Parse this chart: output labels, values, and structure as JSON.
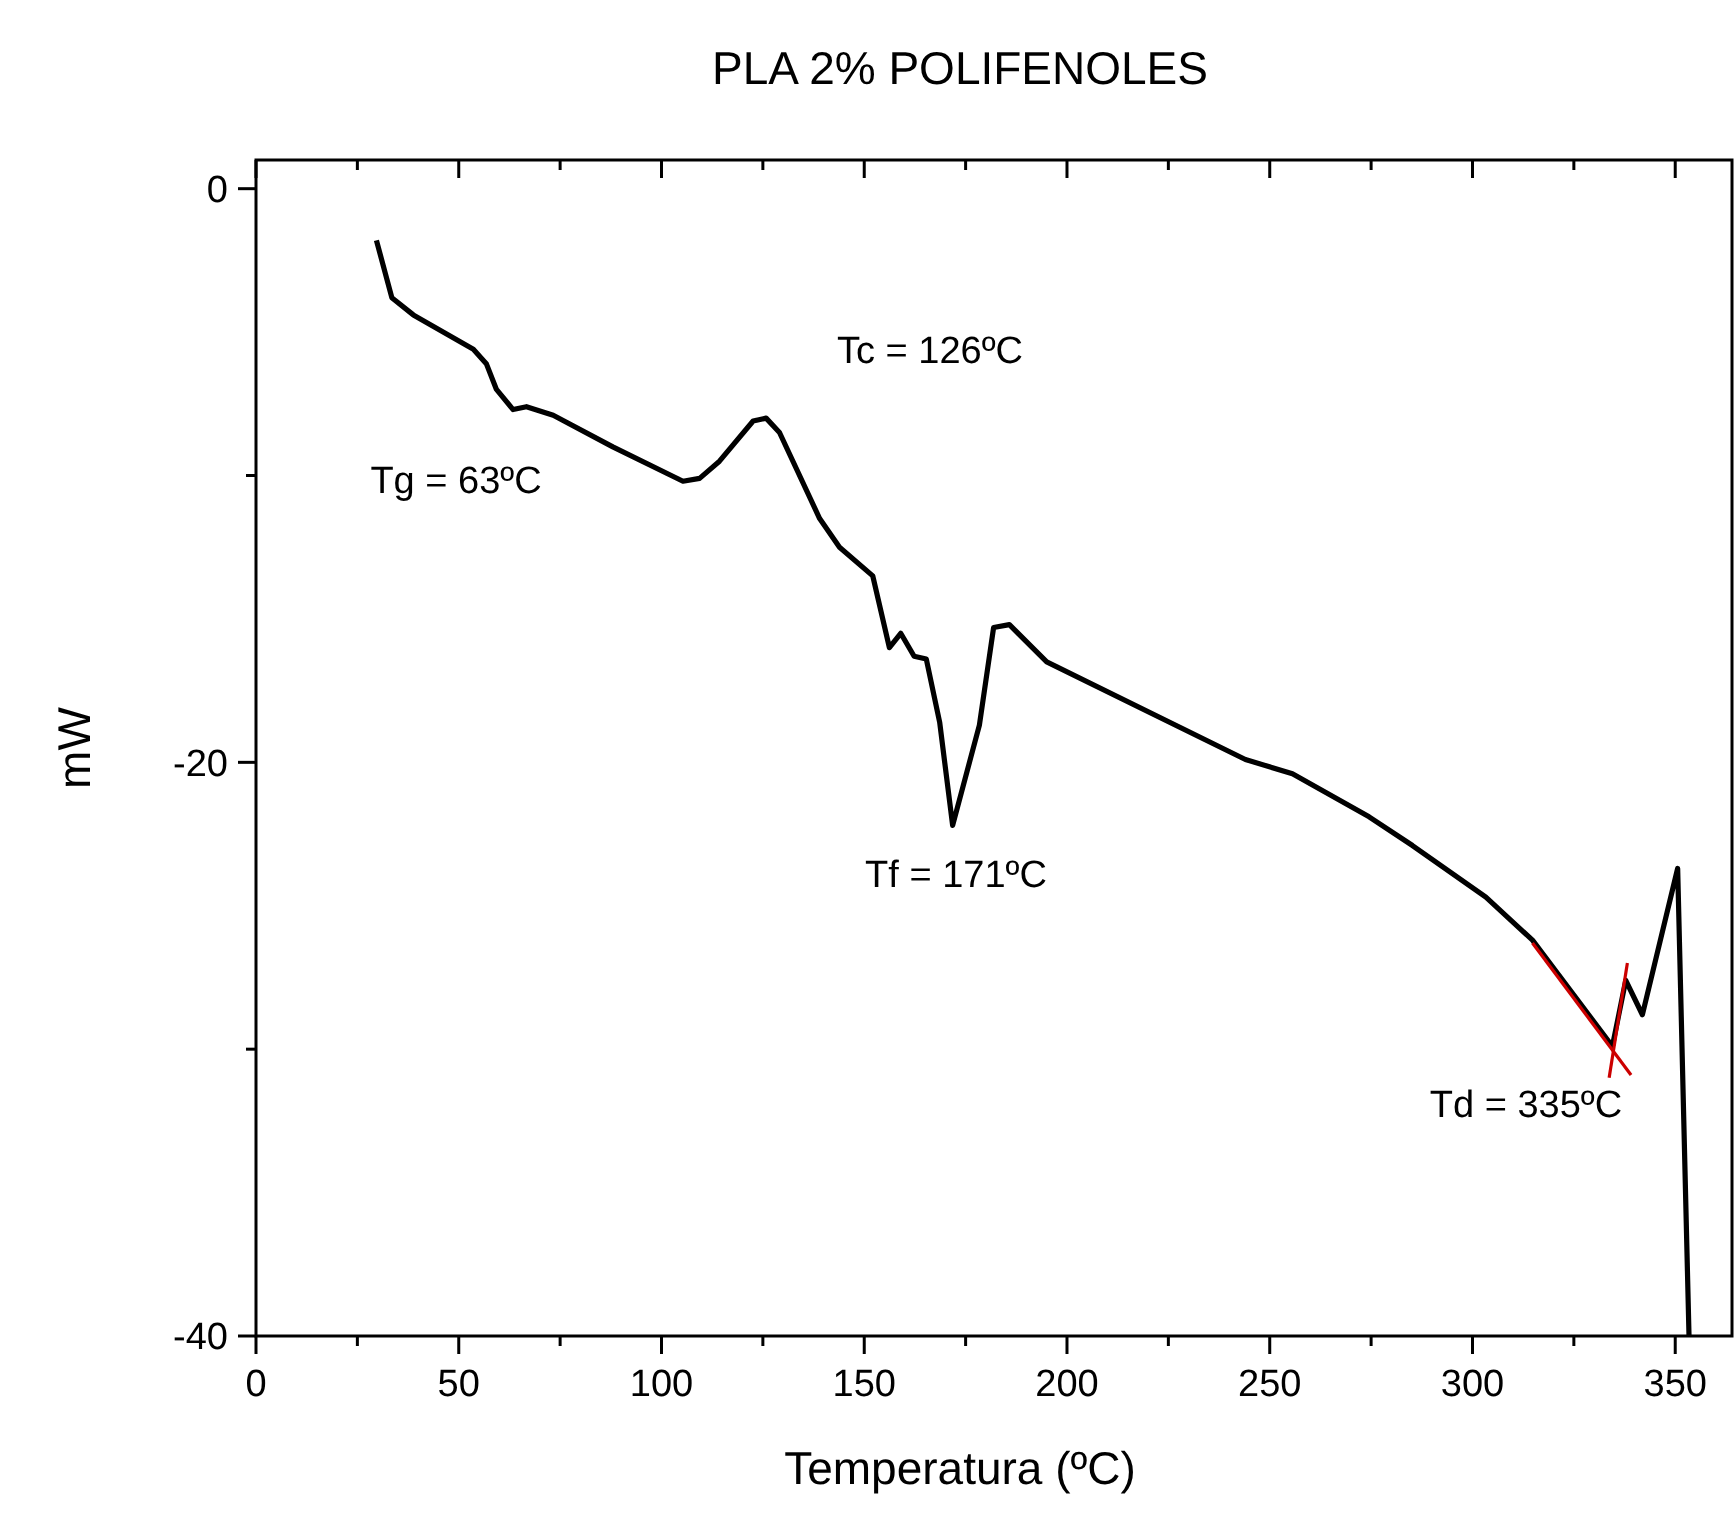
{
  "chart_data": {
    "type": "line",
    "title": "PLA 2% POLIFENOLES",
    "xlabel": "Temperatura (ºC)",
    "ylabel": "mW",
    "xlim": [
      0,
      364
    ],
    "ylim": [
      -40,
      1
    ],
    "xticks": [
      0,
      {
        "value": 25,
        "label": null
      },
      50,
      {
        "value": 75,
        "label": null
      },
      100,
      {
        "value": 125,
        "label": null
      },
      150,
      {
        "value": 175,
        "label": null
      },
      200,
      {
        "value": 225,
        "label": null
      },
      250,
      {
        "value": 275,
        "label": null
      },
      300,
      {
        "value": 325,
        "label": null
      },
      350
    ],
    "yticks": [
      -40,
      {
        "value": -30,
        "label": null
      },
      -20,
      {
        "value": -10,
        "label": null
      },
      0
    ],
    "grid": false,
    "marker": "none",
    "line_style": "solid",
    "series": [
      {
        "color": "#000000",
        "x": [
          29.7,
          33.5,
          38.8,
          53.6,
          56.8,
          59.3,
          63.4,
          66.7,
          73.3,
          88,
          105.3,
          109.4,
          114.3,
          122.6,
          125.8,
          129.1,
          139,
          143.9,
          152.1,
          156.2,
          159,
          162.3,
          165.3,
          168.6,
          171.8,
          178.4,
          181.9,
          185.8,
          195,
          244,
          255.6,
          274.5,
          285.2,
          303.3,
          314.8,
          334.5,
          337.8,
          341.9,
          350.6,
          353.4
        ],
        "values": [
          -1.8,
          -3.8,
          -4.4,
          -5.6,
          -6.1,
          -7,
          -7.7,
          -7.6,
          -7.9,
          -9,
          -10.2,
          -10.1,
          -9.5,
          -8.1,
          -8,
          -8.5,
          -11.5,
          -12.5,
          -13.5,
          -16,
          -15.5,
          -16.3,
          -16.4,
          -18.6,
          -22.2,
          -18.7,
          -15.3,
          -15.2,
          -16.5,
          -19.9,
          -20.4,
          -21.9,
          -22.9,
          -24.7,
          -26.2,
          -29.9,
          -27.6,
          -28.8,
          -23.7,
          -40
        ]
      },
      {
        "color": "#cc0000",
        "x": [
          314.8,
          339.1
        ],
        "values": [
          -26.3,
          -30.9
        ]
      },
      {
        "color": "#cc0000",
        "x": [
          333.7,
          338.2
        ],
        "values": [
          -31,
          -27
        ]
      }
    ],
    "annotations": [
      "Tg = 63ºC",
      "Tc = 126ºC",
      "Tf = 171ºC",
      "Td = 335ºC"
    ]
  }
}
